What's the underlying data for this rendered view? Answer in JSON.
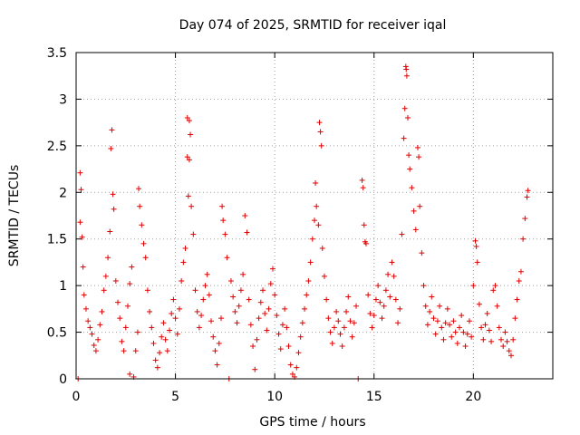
{
  "chart_data": {
    "type": "scatter",
    "title": "Day 074 of 2025, SRMTID for receiver iqal",
    "xlabel": "GPS time / hours",
    "ylabel": "SRMTID / TECUs",
    "xlim": [
      0,
      24
    ],
    "ylim": [
      0,
      3.5
    ],
    "xticks": [
      0,
      5,
      10,
      15,
      20
    ],
    "xtick_labels": [
      "0",
      "5",
      "10",
      "15",
      "20"
    ],
    "yticks": [
      0,
      0.5,
      1,
      1.5,
      2,
      2.5,
      3,
      3.5
    ],
    "ytick_labels": [
      "0",
      "0.5",
      "1",
      "1.5",
      "2",
      "2.5",
      "3",
      "3.5"
    ],
    "grid": true,
    "marker": "plus",
    "color": "#e00000",
    "series": [
      {
        "name": "SRMTID",
        "points": [
          [
            0.1,
            0.0
          ],
          [
            0.2,
            2.21
          ],
          [
            0.25,
            2.03
          ],
          [
            0.2,
            1.68
          ],
          [
            0.3,
            1.52
          ],
          [
            0.35,
            1.2
          ],
          [
            0.4,
            0.9
          ],
          [
            0.5,
            0.75
          ],
          [
            0.6,
            0.62
          ],
          [
            0.7,
            0.55
          ],
          [
            0.8,
            0.48
          ],
          [
            0.9,
            0.36
          ],
          [
            1.0,
            0.3
          ],
          [
            1.1,
            0.42
          ],
          [
            1.2,
            0.58
          ],
          [
            1.3,
            0.72
          ],
          [
            1.4,
            0.95
          ],
          [
            1.5,
            1.1
          ],
          [
            1.6,
            1.3
          ],
          [
            1.7,
            1.58
          ],
          [
            1.8,
            2.67
          ],
          [
            1.75,
            2.47
          ],
          [
            1.85,
            1.98
          ],
          [
            1.9,
            1.82
          ],
          [
            2.0,
            1.05
          ],
          [
            2.1,
            0.82
          ],
          [
            2.2,
            0.65
          ],
          [
            2.3,
            0.4
          ],
          [
            2.4,
            0.3
          ],
          [
            2.5,
            0.55
          ],
          [
            2.6,
            0.78
          ],
          [
            2.7,
            1.02
          ],
          [
            2.8,
            1.2
          ],
          [
            2.7,
            0.05
          ],
          [
            2.9,
            0.02
          ],
          [
            3.0,
            0.3
          ],
          [
            3.1,
            0.5
          ],
          [
            3.15,
            2.04
          ],
          [
            3.2,
            1.85
          ],
          [
            3.3,
            1.65
          ],
          [
            3.4,
            1.45
          ],
          [
            3.5,
            1.3
          ],
          [
            3.6,
            0.95
          ],
          [
            3.7,
            0.72
          ],
          [
            3.8,
            0.55
          ],
          [
            3.9,
            0.38
          ],
          [
            4.0,
            0.2
          ],
          [
            4.1,
            0.12
          ],
          [
            4.2,
            0.28
          ],
          [
            4.3,
            0.45
          ],
          [
            4.4,
            0.6
          ],
          [
            4.5,
            0.42
          ],
          [
            4.6,
            0.3
          ],
          [
            4.7,
            0.52
          ],
          [
            4.8,
            0.7
          ],
          [
            4.9,
            0.85
          ],
          [
            5.0,
            0.65
          ],
          [
            5.1,
            0.48
          ],
          [
            5.2,
            0.75
          ],
          [
            5.3,
            1.05
          ],
          [
            5.4,
            1.25
          ],
          [
            5.5,
            1.4
          ],
          [
            5.6,
            2.8
          ],
          [
            5.7,
            2.77
          ],
          [
            5.75,
            2.62
          ],
          [
            5.6,
            2.38
          ],
          [
            5.7,
            2.35
          ],
          [
            5.65,
            1.96
          ],
          [
            5.8,
            1.85
          ],
          [
            5.9,
            1.55
          ],
          [
            6.0,
            0.95
          ],
          [
            6.1,
            0.72
          ],
          [
            6.2,
            0.55
          ],
          [
            6.3,
            0.68
          ],
          [
            6.4,
            0.85
          ],
          [
            6.5,
            1.0
          ],
          [
            6.6,
            1.12
          ],
          [
            6.7,
            0.9
          ],
          [
            6.8,
            0.62
          ],
          [
            6.9,
            0.45
          ],
          [
            7.0,
            0.3
          ],
          [
            7.1,
            0.15
          ],
          [
            7.2,
            0.38
          ],
          [
            7.3,
            0.65
          ],
          [
            7.35,
            1.85
          ],
          [
            7.4,
            1.7
          ],
          [
            7.5,
            1.55
          ],
          [
            7.6,
            1.3
          ],
          [
            7.7,
            0.0
          ],
          [
            7.8,
            1.05
          ],
          [
            7.9,
            0.88
          ],
          [
            8.0,
            0.72
          ],
          [
            8.1,
            0.6
          ],
          [
            8.2,
            0.78
          ],
          [
            8.3,
            0.95
          ],
          [
            8.4,
            1.12
          ],
          [
            8.5,
            1.75
          ],
          [
            8.6,
            1.57
          ],
          [
            8.7,
            0.85
          ],
          [
            8.8,
            0.58
          ],
          [
            8.9,
            0.35
          ],
          [
            9.0,
            0.1
          ],
          [
            9.1,
            0.42
          ],
          [
            9.2,
            0.65
          ],
          [
            9.3,
            0.82
          ],
          [
            9.4,
            0.95
          ],
          [
            9.5,
            0.7
          ],
          [
            9.6,
            0.52
          ],
          [
            9.7,
            0.75
          ],
          [
            9.8,
            1.02
          ],
          [
            9.9,
            1.18
          ],
          [
            10.0,
            0.9
          ],
          [
            10.1,
            0.68
          ],
          [
            10.2,
            0.48
          ],
          [
            10.3,
            0.32
          ],
          [
            10.4,
            0.58
          ],
          [
            10.5,
            0.75
          ],
          [
            10.6,
            0.55
          ],
          [
            10.7,
            0.35
          ],
          [
            10.8,
            0.15
          ],
          [
            10.9,
            0.05
          ],
          [
            11.0,
            0.02
          ],
          [
            11.1,
            0.12
          ],
          [
            11.2,
            0.28
          ],
          [
            11.3,
            0.45
          ],
          [
            11.4,
            0.6
          ],
          [
            11.5,
            0.75
          ],
          [
            11.6,
            0.9
          ],
          [
            11.7,
            1.05
          ],
          [
            11.8,
            1.25
          ],
          [
            11.9,
            1.5
          ],
          [
            12.0,
            1.7
          ],
          [
            12.05,
            2.1
          ],
          [
            12.1,
            1.85
          ],
          [
            12.2,
            1.65
          ],
          [
            12.25,
            2.75
          ],
          [
            12.3,
            2.65
          ],
          [
            12.35,
            2.5
          ],
          [
            12.4,
            1.4
          ],
          [
            12.5,
            1.1
          ],
          [
            12.6,
            0.85
          ],
          [
            12.7,
            0.65
          ],
          [
            12.8,
            0.5
          ],
          [
            12.9,
            0.38
          ],
          [
            13.0,
            0.55
          ],
          [
            13.1,
            0.72
          ],
          [
            13.2,
            0.62
          ],
          [
            13.3,
            0.48
          ],
          [
            13.4,
            0.35
          ],
          [
            13.5,
            0.55
          ],
          [
            13.6,
            0.72
          ],
          [
            13.7,
            0.88
          ],
          [
            13.8,
            0.62
          ],
          [
            13.9,
            0.45
          ],
          [
            14.0,
            0.6
          ],
          [
            14.1,
            0.78
          ],
          [
            14.2,
            0.0
          ],
          [
            14.4,
            2.13
          ],
          [
            14.45,
            2.05
          ],
          [
            14.5,
            1.65
          ],
          [
            14.55,
            1.47
          ],
          [
            14.6,
            1.45
          ],
          [
            14.7,
            0.9
          ],
          [
            14.8,
            0.7
          ],
          [
            14.9,
            0.55
          ],
          [
            15.0,
            0.68
          ],
          [
            15.1,
            0.85
          ],
          [
            15.2,
            1.0
          ],
          [
            15.3,
            0.82
          ],
          [
            15.4,
            0.65
          ],
          [
            15.5,
            0.78
          ],
          [
            15.6,
            0.95
          ],
          [
            15.7,
            1.12
          ],
          [
            15.8,
            0.88
          ],
          [
            15.9,
            1.25
          ],
          [
            16.0,
            1.1
          ],
          [
            16.1,
            0.85
          ],
          [
            16.2,
            0.6
          ],
          [
            16.3,
            0.75
          ],
          [
            16.4,
            1.55
          ],
          [
            16.5,
            2.58
          ],
          [
            16.55,
            2.9
          ],
          [
            16.6,
            3.35
          ],
          [
            16.62,
            3.32
          ],
          [
            16.65,
            3.25
          ],
          [
            16.7,
            2.8
          ],
          [
            16.75,
            2.4
          ],
          [
            16.8,
            2.25
          ],
          [
            16.9,
            2.05
          ],
          [
            17.0,
            1.8
          ],
          [
            17.1,
            1.6
          ],
          [
            17.2,
            2.48
          ],
          [
            17.25,
            2.38
          ],
          [
            17.3,
            1.85
          ],
          [
            17.4,
            1.35
          ],
          [
            17.5,
            1.0
          ],
          [
            17.6,
            0.78
          ],
          [
            17.7,
            0.58
          ],
          [
            17.8,
            0.72
          ],
          [
            17.9,
            0.88
          ],
          [
            18.0,
            0.65
          ],
          [
            18.1,
            0.48
          ],
          [
            18.2,
            0.62
          ],
          [
            18.3,
            0.78
          ],
          [
            18.4,
            0.55
          ],
          [
            18.5,
            0.42
          ],
          [
            18.6,
            0.6
          ],
          [
            18.7,
            0.75
          ],
          [
            18.8,
            0.58
          ],
          [
            18.9,
            0.45
          ],
          [
            19.0,
            0.62
          ],
          [
            19.1,
            0.5
          ],
          [
            19.2,
            0.38
          ],
          [
            19.3,
            0.55
          ],
          [
            19.4,
            0.68
          ],
          [
            19.5,
            0.5
          ],
          [
            19.6,
            0.35
          ],
          [
            19.7,
            0.48
          ],
          [
            19.8,
            0.62
          ],
          [
            19.9,
            0.45
          ],
          [
            20.0,
            1.0
          ],
          [
            20.1,
            1.48
          ],
          [
            20.15,
            1.42
          ],
          [
            20.2,
            1.25
          ],
          [
            20.3,
            0.8
          ],
          [
            20.4,
            0.55
          ],
          [
            20.5,
            0.42
          ],
          [
            20.6,
            0.58
          ],
          [
            20.7,
            0.7
          ],
          [
            20.8,
            0.52
          ],
          [
            20.9,
            0.4
          ],
          [
            21.0,
            0.95
          ],
          [
            21.1,
            1.0
          ],
          [
            21.2,
            0.78
          ],
          [
            21.3,
            0.55
          ],
          [
            21.4,
            0.42
          ],
          [
            21.5,
            0.35
          ],
          [
            21.6,
            0.5
          ],
          [
            21.7,
            0.4
          ],
          [
            21.8,
            0.3
          ],
          [
            21.9,
            0.25
          ],
          [
            22.0,
            0.42
          ],
          [
            22.1,
            0.65
          ],
          [
            22.2,
            0.85
          ],
          [
            22.3,
            1.05
          ],
          [
            22.4,
            1.15
          ],
          [
            22.5,
            1.5
          ],
          [
            22.6,
            1.72
          ],
          [
            22.7,
            1.95
          ],
          [
            22.75,
            2.02
          ]
        ]
      }
    ]
  }
}
